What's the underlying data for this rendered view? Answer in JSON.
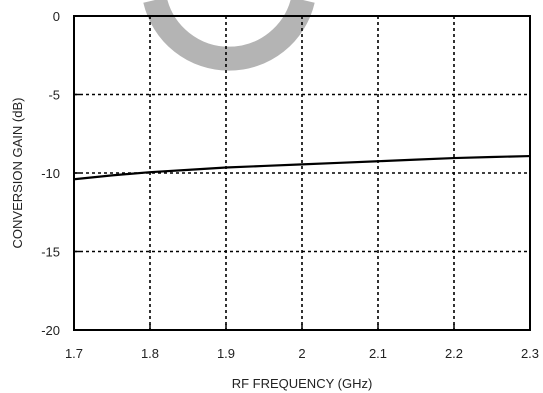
{
  "chart_data": {
    "type": "line",
    "xlabel": "RF FREQUENCY (GHz)",
    "ylabel": "CONVERSION GAIN (dB)",
    "xlim": [
      1.7,
      2.3
    ],
    "ylim": [
      -20,
      0
    ],
    "xticks": [
      1.7,
      1.8,
      1.9,
      2.0,
      2.1,
      2.2,
      2.3
    ],
    "xtick_labels": [
      "1.7",
      "1.8",
      "1.9",
      "2",
      "2.1",
      "2.2",
      "2.3"
    ],
    "yticks": [
      0,
      -5,
      -10,
      -15,
      -20
    ],
    "ytick_labels": [
      "0",
      "-5",
      "-10",
      "-15",
      "-20"
    ],
    "grid": true,
    "grid_style": "dotted",
    "series": [
      {
        "color": "#000000",
        "x": [
          1.7,
          1.75,
          1.8,
          1.85,
          1.9,
          1.95,
          2.0,
          2.05,
          2.1,
          2.15,
          2.2,
          2.25,
          2.3
        ],
        "y": [
          -10.4,
          -10.15,
          -9.95,
          -9.8,
          -9.65,
          -9.55,
          -9.45,
          -9.35,
          -9.25,
          -9.15,
          -9.05,
          -8.98,
          -8.92
        ]
      }
    ]
  }
}
